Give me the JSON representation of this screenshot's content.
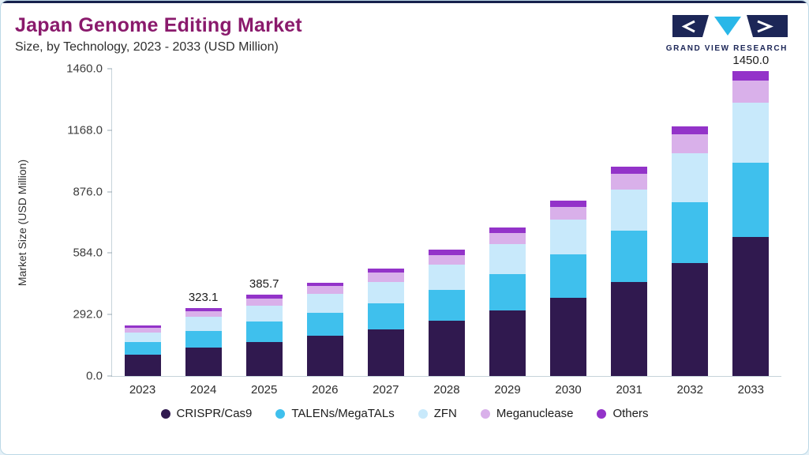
{
  "header": {
    "title": "Japan Genome Editing Market",
    "subtitle": "Size, by Technology, 2023 - 2033 (USD Million)",
    "brand": "GRAND VIEW RESEARCH"
  },
  "chart_data": {
    "type": "bar",
    "stacked": true,
    "title": "Japan Genome Editing Market Size, by Technology, 2023 - 2033 (USD Million)",
    "ylabel": "Market Size (USD Million)",
    "xlabel": "",
    "ylim": [
      0,
      1460
    ],
    "grid": false,
    "legend_position": "bottom",
    "yticks": [
      0,
      292,
      584,
      876,
      1168,
      1460
    ],
    "ytick_labels": [
      "0.0",
      "292.0",
      "584.0",
      "876.0",
      "1168.0",
      "1460.0"
    ],
    "categories": [
      "2023",
      "2024",
      "2025",
      "2026",
      "2027",
      "2028",
      "2029",
      "2030",
      "2031",
      "2032",
      "2033"
    ],
    "series": [
      {
        "name": "CRISPR/Cas9",
        "color": "#30194f",
        "values": [
          100,
          135,
          162,
          190,
          220,
          262,
          310,
          370,
          445,
          535,
          660
        ]
      },
      {
        "name": "TALENs/MegaTALs",
        "color": "#3fc0ed",
        "values": [
          60,
          80,
          96,
          110,
          126,
          148,
          175,
          208,
          245,
          290,
          355
        ]
      },
      {
        "name": "ZFN",
        "color": "#c8e9fb",
        "values": [
          48,
          65,
          77,
          89,
          102,
          118,
          140,
          165,
          195,
          235,
          285
        ]
      },
      {
        "name": "Meganuclease",
        "color": "#d9b0ea",
        "values": [
          20,
          28,
          33,
          38,
          42,
          48,
          55,
          62,
          75,
          88,
          105
        ]
      },
      {
        "name": "Others",
        "color": "#9333c9",
        "values": [
          12,
          15.1,
          17.7,
          18,
          20,
          24,
          25,
          30,
          35,
          37,
          45
        ]
      }
    ],
    "bar_labels": [
      null,
      "323.1",
      "385.7",
      null,
      null,
      null,
      null,
      null,
      null,
      null,
      "1450.0"
    ]
  },
  "colors": {
    "accent_bar": "#16214d",
    "title": "#8a1a6c",
    "logo_navy": "#1c2657",
    "logo_cyan": "#29b7e8"
  }
}
